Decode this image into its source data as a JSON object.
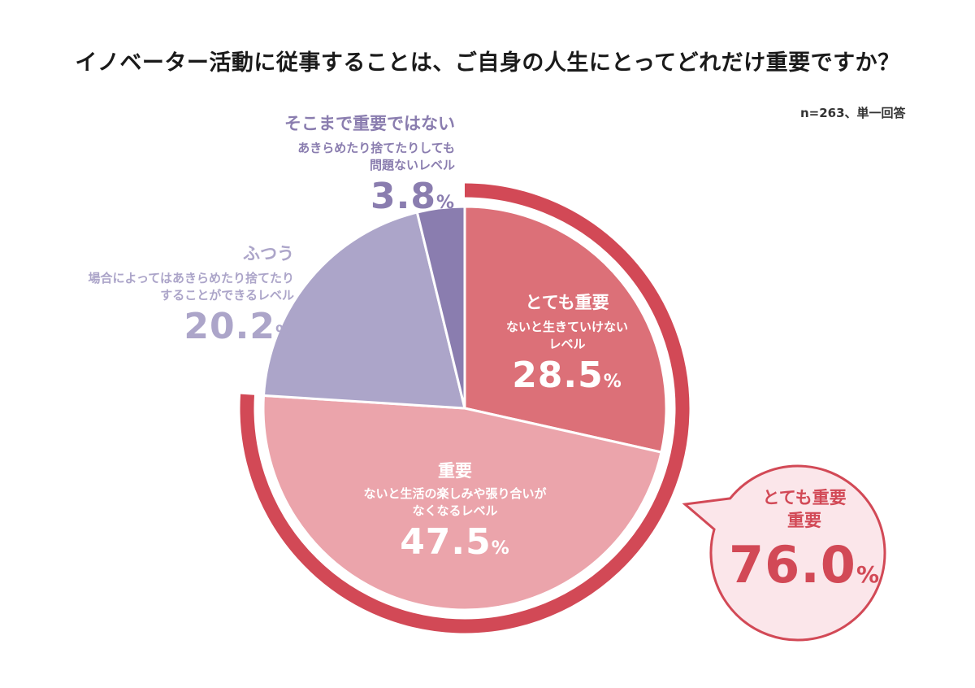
{
  "title": "イノベーター活動に従事することは、ご自身の人生にとってどれだけ重要ですか？",
  "sample": "n=263、単一回答",
  "colors": {
    "very_important": "#dc7078",
    "important": "#eba4ab",
    "normal": "#aca5c9",
    "not_important": "#8a7daf",
    "ring": "#d24956",
    "callout_border": "#d24956",
    "callout_fill": "#fbe6ea"
  },
  "chart_data": {
    "type": "pie",
    "slices": [
      {
        "key": "very_important",
        "label": "とても重要",
        "description": "ないと生きていけない\nレベル",
        "value": 28.5
      },
      {
        "key": "important",
        "label": "重要",
        "description": "ないと生活の楽しみや張り合いが\nなくなるレベル",
        "value": 47.5
      },
      {
        "key": "normal",
        "label": "ふつう",
        "description": "場合によってはあきらめたり捨てたり\nすることができるレベル",
        "value": 20.2
      },
      {
        "key": "not_important",
        "label": "そこまで重要ではない",
        "description": "あきらめたり捨てたりしても\n問題ないレベル",
        "value": 3.8
      }
    ],
    "unit": "%",
    "combined": {
      "label_line1": "とても重要",
      "label_line2": "重要",
      "value": 76.0
    }
  }
}
